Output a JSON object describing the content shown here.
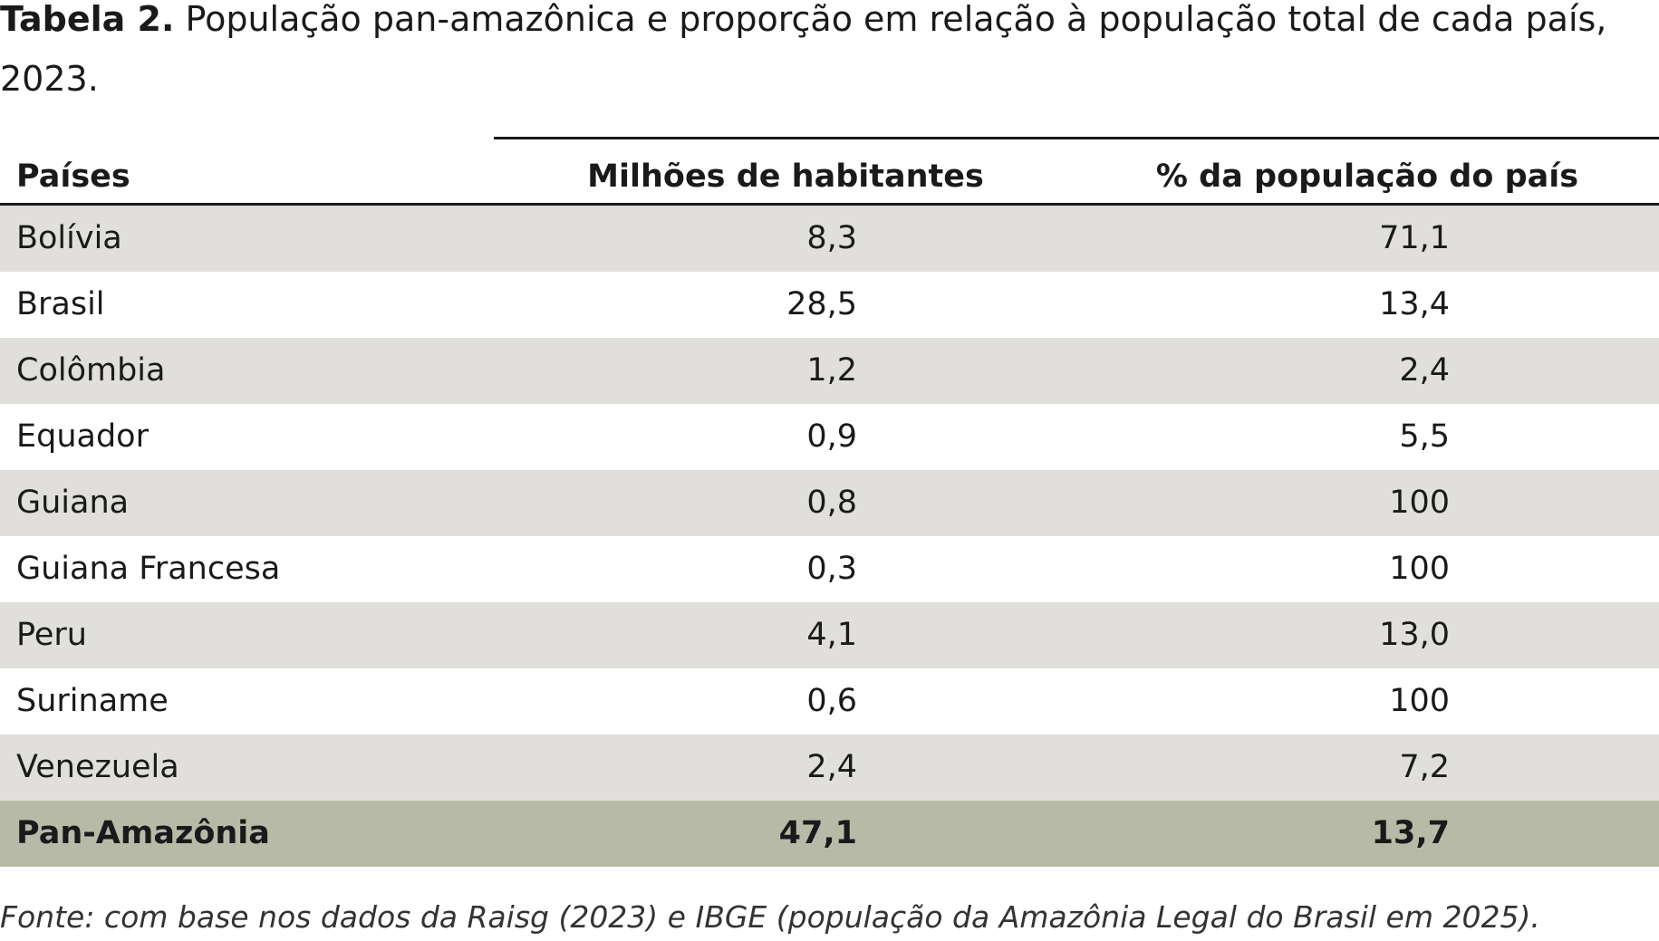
{
  "caption": {
    "label": "Tabela 2.",
    "text": "População pan-amazônica e proporção em relação à população total de cada país, 2023."
  },
  "table": {
    "headers": [
      "Países",
      "Milhões de habitantes",
      "% da população do país"
    ],
    "rows": [
      [
        "Bolívia",
        "8,3",
        "71,1"
      ],
      [
        "Brasil",
        "28,5",
        "13,4"
      ],
      [
        "Colômbia",
        "1,2",
        "2,4"
      ],
      [
        "Equador",
        "0,9",
        "5,5"
      ],
      [
        "Guiana",
        "0,8",
        "100"
      ],
      [
        "Guiana Francesa",
        "0,3",
        "100"
      ],
      [
        "Peru",
        "4,1",
        "13,0"
      ],
      [
        "Suriname",
        "0,6",
        "100"
      ],
      [
        "Venezuela",
        "2,4",
        "7,2"
      ]
    ],
    "total": [
      "Pan-Amazônia",
      "47,1",
      "13,7"
    ]
  },
  "source": "Fonte: com base nos dados da Raisg (2023) e IBGE (população da Amazônia Legal do Brasil em 2025)."
}
